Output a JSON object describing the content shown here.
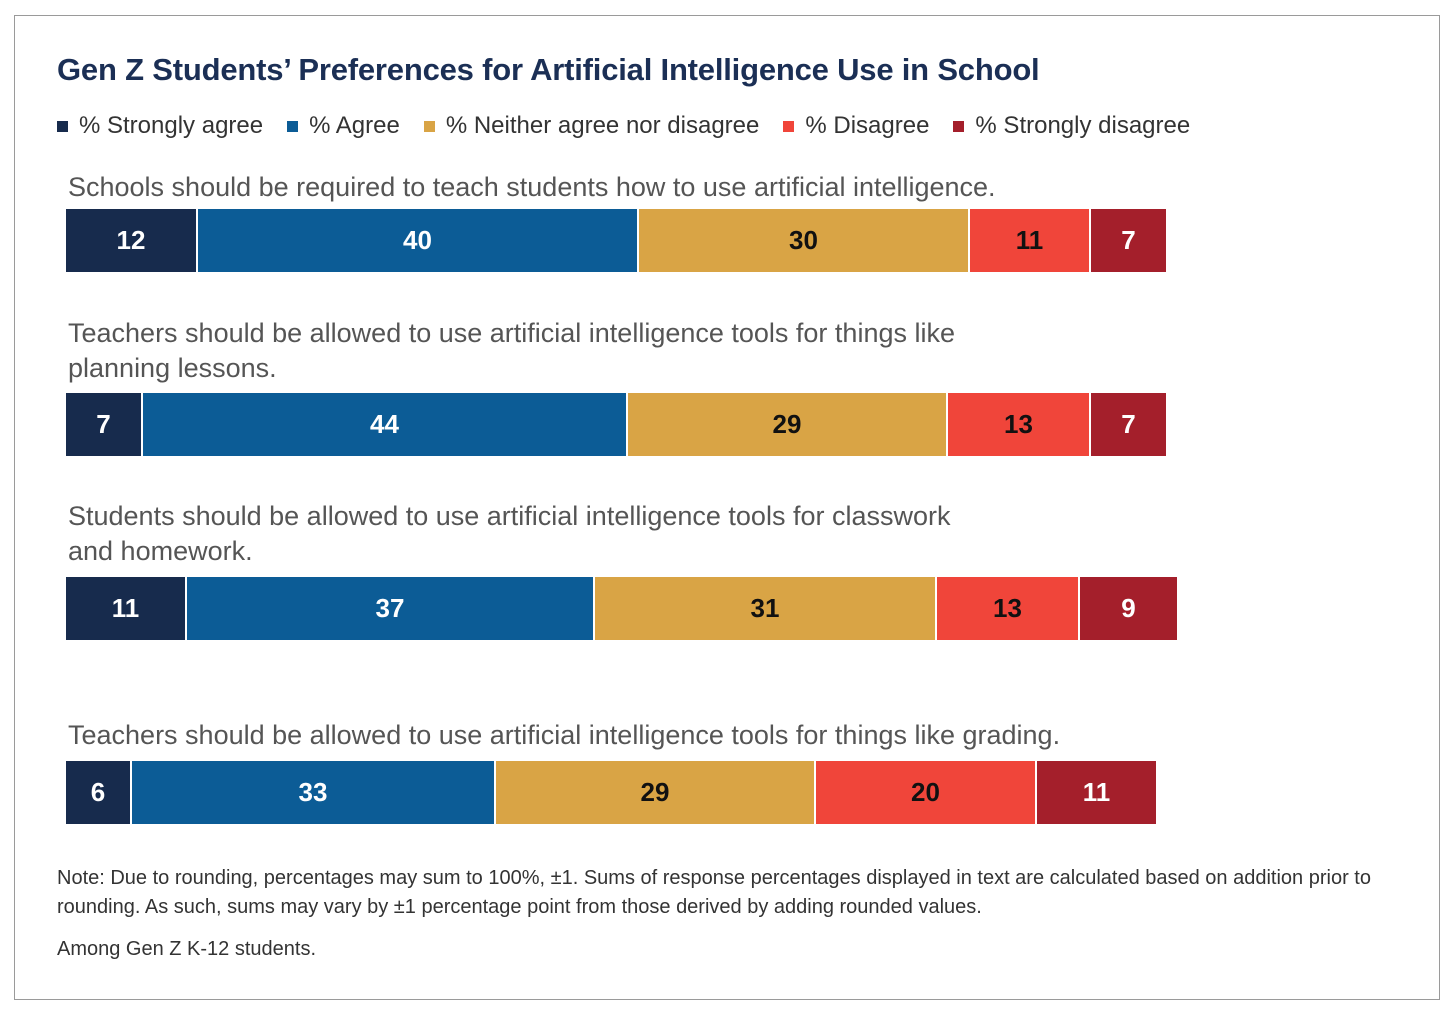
{
  "chart_data": {
    "type": "bar",
    "orientation": "horizontal",
    "stacked": true,
    "title": "Gen Z Students’ Preferences for Artificial Intelligence Use in School",
    "legend_position": "top",
    "grid": false,
    "series": [
      {
        "name": "% Strongly agree",
        "color": "#172b4d",
        "text_color": "#ffffff"
      },
      {
        "name": "% Agree",
        "color": "#0c5c96",
        "text_color": "#ffffff"
      },
      {
        "name": "% Neither agree nor disagree",
        "color": "#d9a445",
        "text_color": "#111111"
      },
      {
        "name": "% Disagree",
        "color": "#f0453a",
        "text_color": "#111111"
      },
      {
        "name": "% Strongly disagree",
        "color": "#a41f2b",
        "text_color": "#ffffff"
      }
    ],
    "categories": [
      {
        "label_lines": [
          "Schools should be required to teach students how to use artificial intelligence."
        ],
        "values": [
          12,
          40,
          30,
          11,
          7
        ]
      },
      {
        "label_lines": [
          "Teachers should be allowed to use artificial intelligence tools for things like",
          "planning lessons."
        ],
        "values": [
          7,
          44,
          29,
          13,
          7
        ]
      },
      {
        "label_lines": [
          "Students should be allowed to use artificial intelligence tools for classwork",
          "and homework."
        ],
        "values": [
          11,
          37,
          31,
          13,
          9
        ]
      },
      {
        "label_lines": [
          "Teachers should be allowed to use artificial intelligence tools for things like grading."
        ],
        "values": [
          6,
          33,
          29,
          20,
          11
        ]
      }
    ]
  },
  "footer": {
    "note": "Note: Due to rounding, percentages may sum to 100%, ±1. Sums of response percentages displayed in text are calculated based on addition prior to rounding. As such, sums may vary by ±1 percentage point from those derived by adding rounded values.",
    "base": "Among Gen Z K-12 students."
  }
}
